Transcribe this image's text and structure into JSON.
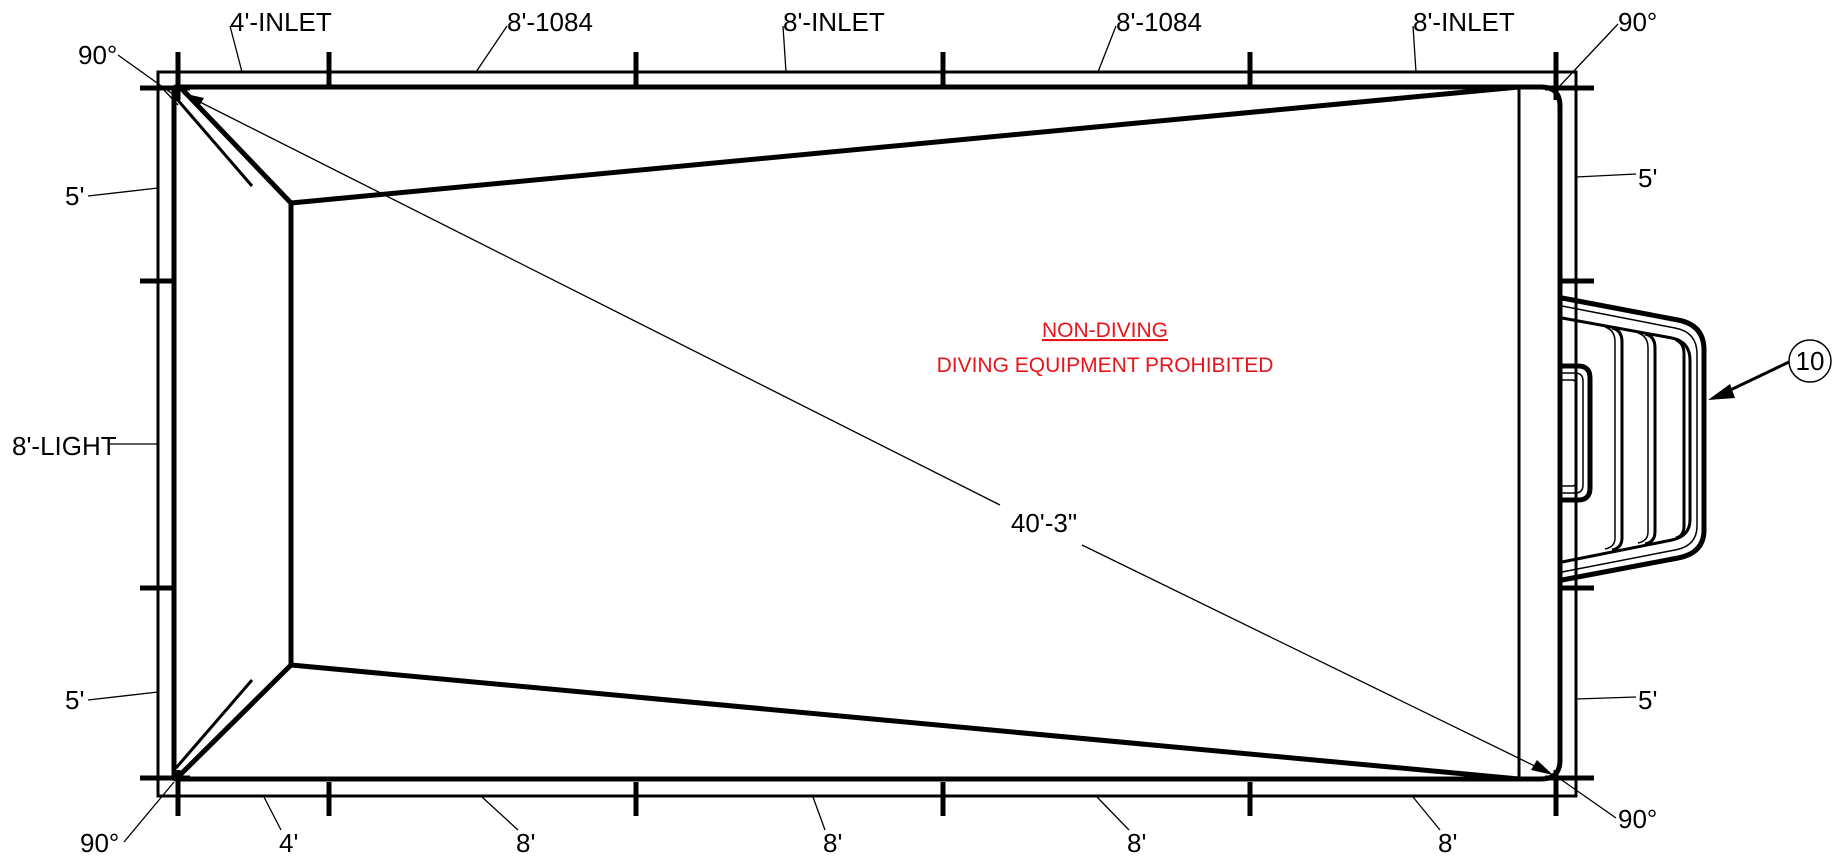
{
  "top_labels": [
    "4'-INLET",
    "8'-1084",
    "8'-INLET",
    "8'-1084",
    "8'-INLET"
  ],
  "bottom_labels": [
    "4'",
    "8'",
    "8'",
    "8'",
    "8'"
  ],
  "left_labels": [
    "5'",
    "8'-LIGHT",
    "5'"
  ],
  "right_labels": [
    "5'",
    "5'"
  ],
  "corner_angles": {
    "top_left": "90°",
    "top_right": "90°",
    "bottom_left": "90°",
    "bottom_right": "90°"
  },
  "diagonal_dimension": "40'-3\"",
  "notes": {
    "non_diving": "NON-DIVING",
    "prohibited": "DIVING EQUIPMENT PROHIBITED",
    "color": "#e8141b"
  },
  "callout": "10"
}
